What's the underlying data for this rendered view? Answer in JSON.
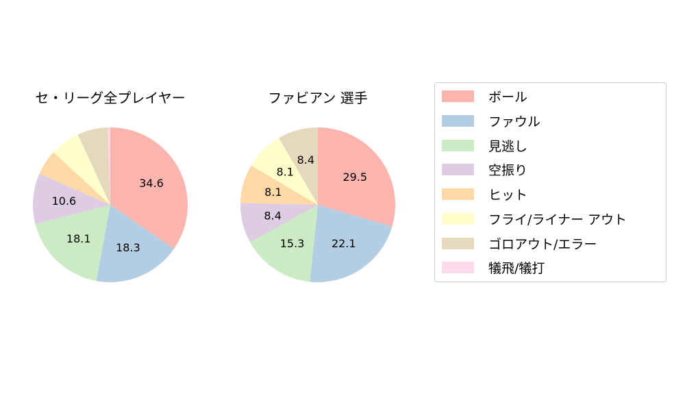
{
  "chart_data": [
    {
      "type": "pie",
      "title": "セ・リーグ全プレイヤー",
      "categories": [
        "ボール",
        "ファウル",
        "見逃し",
        "空振り",
        "ヒット",
        "フライ/ライナー アウト",
        "ゴロアウト/エラー",
        "犠飛/犠打"
      ],
      "values": [
        34.6,
        18.3,
        18.1,
        10.6,
        5.3,
        6.2,
        6.4,
        0.5
      ],
      "labels_shown": [
        "34.6",
        "18.3",
        "18.1",
        "10.6",
        "",
        "",
        "",
        ""
      ],
      "start_angle": 90,
      "direction": "clockwise"
    },
    {
      "type": "pie",
      "title": "ファビアン  選手",
      "categories": [
        "ボール",
        "ファウル",
        "見逃し",
        "空振り",
        "ヒット",
        "フライ/ライナー アウト",
        "ゴロアウト/エラー",
        "犠飛/犠打"
      ],
      "values": [
        29.5,
        22.1,
        15.3,
        8.4,
        8.1,
        8.1,
        8.4,
        0.0
      ],
      "labels_shown": [
        "29.5",
        "22.1",
        "15.3",
        "8.4",
        "8.1",
        "8.1",
        "8.4",
        ""
      ],
      "start_angle": 90,
      "direction": "clockwise"
    }
  ],
  "titles": {
    "left": "セ・リーグ全プレイヤー",
    "right": "ファビアン  選手"
  },
  "legend": {
    "position": "right",
    "items": [
      {
        "label": "ボール",
        "color": "#fbb4ae"
      },
      {
        "label": "ファウル",
        "color": "#b3cde3"
      },
      {
        "label": "見逃し",
        "color": "#ccebc5"
      },
      {
        "label": "空振り",
        "color": "#decbe4"
      },
      {
        "label": "ヒット",
        "color": "#fed9a6"
      },
      {
        "label": "フライ/ライナー アウト",
        "color": "#ffffcc"
      },
      {
        "label": "ゴロアウト/エラー",
        "color": "#e5d8bd"
      },
      {
        "label": "犠飛/犠打",
        "color": "#fddaec"
      }
    ]
  }
}
